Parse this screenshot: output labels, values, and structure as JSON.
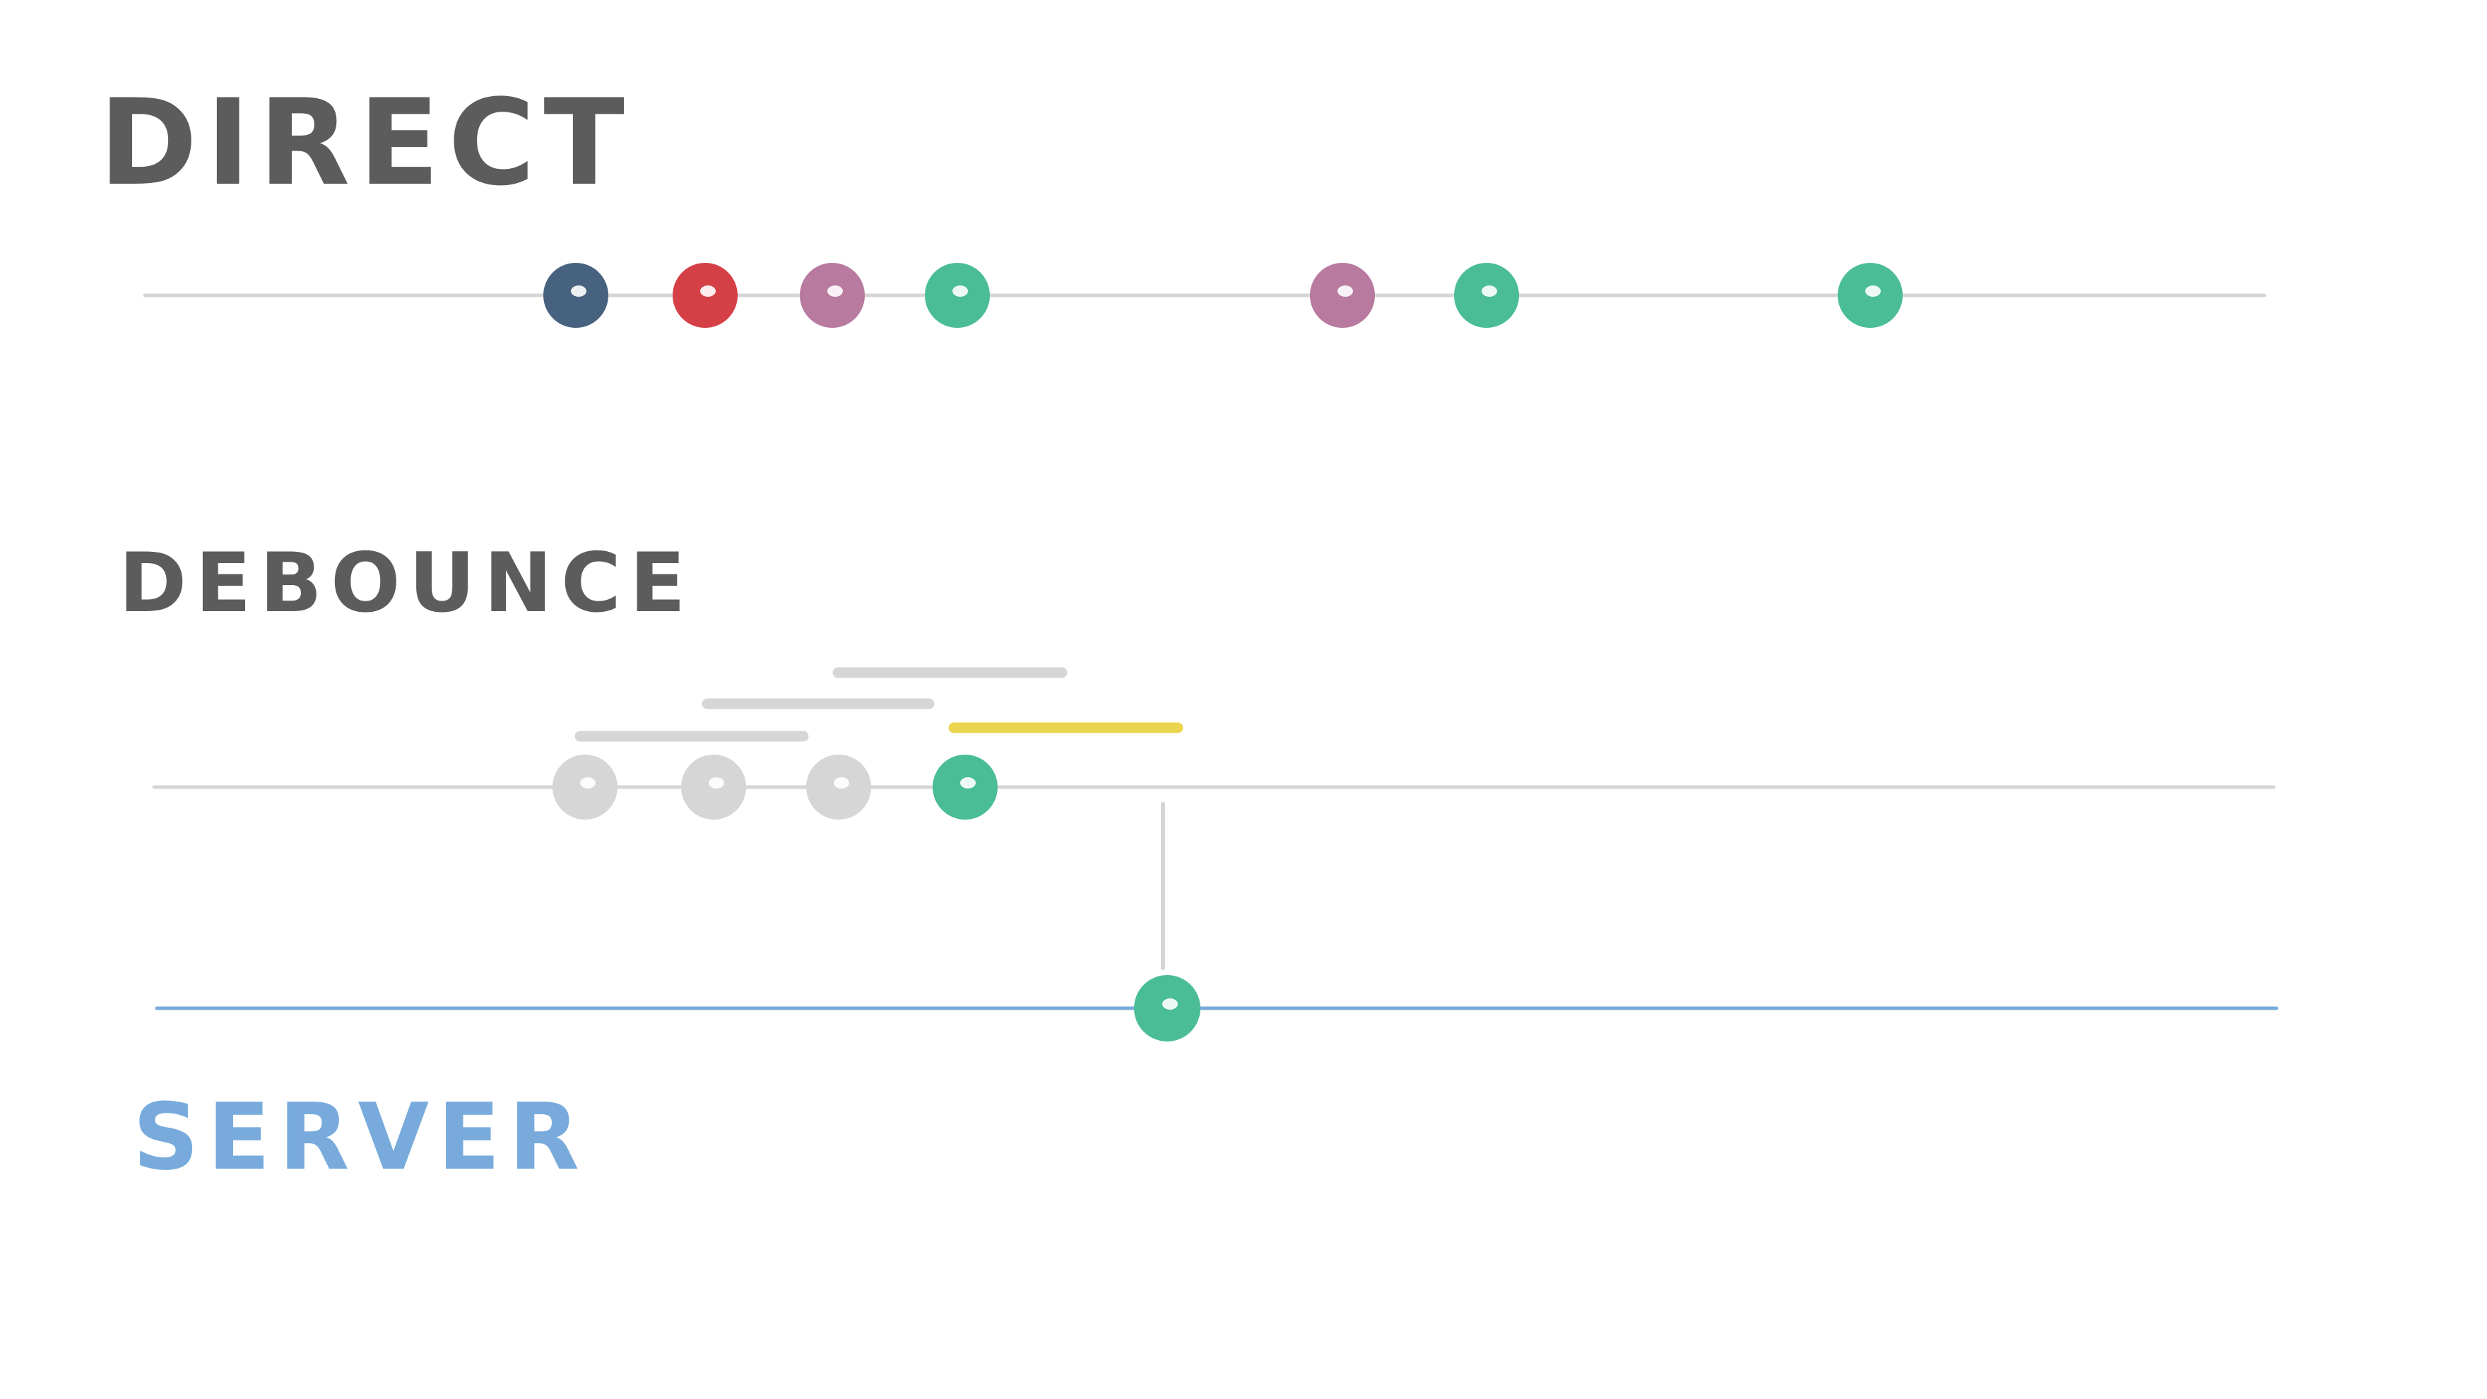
{
  "labels": {
    "direct": "DIRECT",
    "debounce": "DEBOUNCE",
    "server": "SERVER"
  },
  "colors": {
    "text_dark": "#5c5c5c",
    "server_blue": "#78abdc",
    "timeline_gray": "#d6d6d6",
    "debounce_active": "#ecd54e",
    "dot_navy": "#46627f",
    "dot_red": "#d53f46",
    "dot_mauve": "#b87a9f",
    "dot_green": "#4abd97",
    "dot_inactive": "#d6d6d6"
  },
  "timelines": [
    {
      "name": "direct",
      "events": [
        {
          "color": "dot_navy"
        },
        {
          "color": "dot_red"
        },
        {
          "color": "dot_mauve"
        },
        {
          "color": "dot_green"
        },
        {
          "color": "dot_mauve"
        },
        {
          "color": "dot_green"
        },
        {
          "color": "dot_green"
        }
      ]
    },
    {
      "name": "debounce",
      "events": [
        {
          "color": "dot_inactive"
        },
        {
          "color": "dot_inactive"
        },
        {
          "color": "dot_inactive"
        },
        {
          "color": "dot_green"
        }
      ],
      "windows": [
        {
          "color": "timeline_gray"
        },
        {
          "color": "timeline_gray"
        },
        {
          "color": "timeline_gray"
        },
        {
          "color": "debounce_active"
        }
      ]
    },
    {
      "name": "server",
      "events": [
        {
          "color": "dot_green"
        }
      ]
    }
  ]
}
